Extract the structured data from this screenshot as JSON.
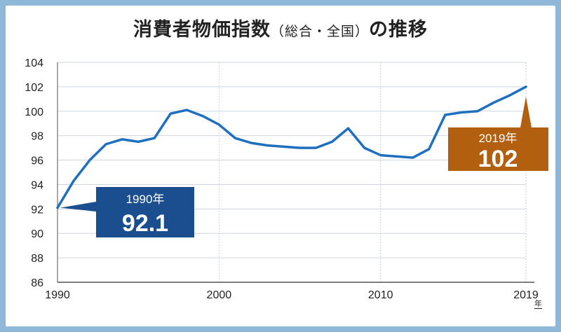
{
  "title_main": "消費者物価指数",
  "title_paren": "（総合・全国）",
  "title_suffix": "の推移",
  "x_unit": "年",
  "annotations": [
    {
      "year": 1990,
      "label": "1990年",
      "value": "92.1",
      "color": "#1a4e8e"
    },
    {
      "year": 2019,
      "label": "2019年",
      "value": "102",
      "color": "#b35f10"
    }
  ],
  "chart_data": {
    "type": "line",
    "title": "消費者物価指数（総合・全国）の推移",
    "xlim": [
      1990,
      2019
    ],
    "ylim": [
      86,
      104
    ],
    "yticks": [
      86,
      88,
      90,
      92,
      94,
      96,
      98,
      100,
      102,
      104
    ],
    "xticks": [
      1990,
      2000,
      2010,
      2019
    ],
    "grid": true,
    "line_color": "#1f6fc0",
    "series": [
      {
        "x": [
          1990,
          1991,
          1992,
          1993,
          1994,
          1995,
          1996,
          1997,
          1998,
          1999,
          2000,
          2001,
          2002,
          2003,
          2004,
          2005,
          2006,
          2007,
          2008,
          2009,
          2010,
          2011,
          2012,
          2013,
          2014,
          2015,
          2016,
          2017,
          2018,
          2019
        ],
        "values": [
          92.1,
          94.3,
          96.0,
          97.3,
          97.7,
          97.5,
          97.8,
          99.8,
          100.1,
          99.6,
          98.9,
          97.8,
          97.4,
          97.2,
          97.1,
          97.0,
          97.0,
          97.5,
          98.6,
          97.0,
          96.4,
          96.3,
          96.2,
          96.9,
          99.7,
          99.9,
          100.0,
          100.7,
          101.3,
          102.0
        ]
      }
    ]
  }
}
